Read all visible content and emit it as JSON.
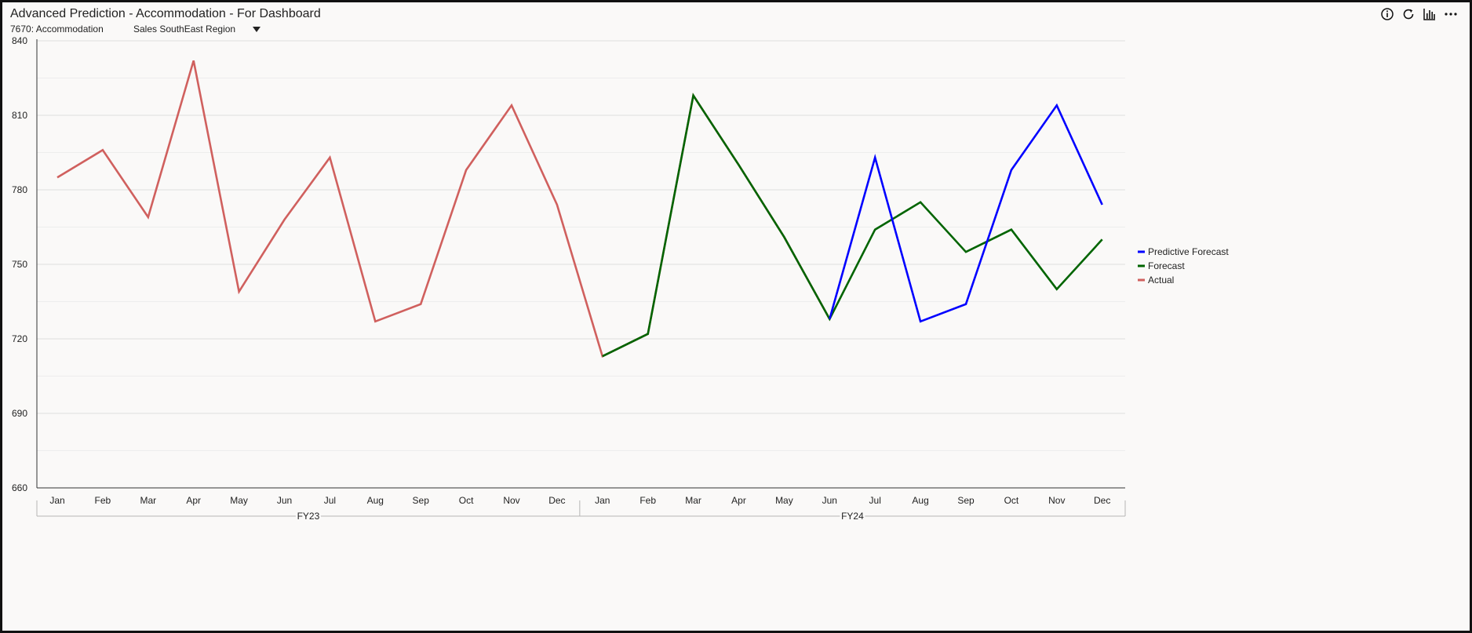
{
  "header": {
    "title": "Advanced Prediction - Accommodation - For Dashboard",
    "subtitle": "7670: Accommodation",
    "region_select": "Sales SouthEast Region"
  },
  "toolbar": {
    "icons": [
      "info-icon",
      "refresh-icon",
      "bar-chart-icon",
      "more-options-icon"
    ]
  },
  "chart_data": {
    "type": "line",
    "title": "",
    "xlabel": "",
    "ylabel": "",
    "ylim": [
      660,
      840
    ],
    "yticks": [
      660,
      690,
      720,
      750,
      780,
      810,
      840
    ],
    "grid": true,
    "legend_position": "right",
    "categories": [
      "Jan",
      "Feb",
      "Mar",
      "Apr",
      "May",
      "Jun",
      "Jul",
      "Aug",
      "Sep",
      "Oct",
      "Nov",
      "Dec",
      "Jan",
      "Feb",
      "Mar",
      "Apr",
      "May",
      "Jun",
      "Jul",
      "Aug",
      "Sep",
      "Oct",
      "Nov",
      "Dec"
    ],
    "groups": [
      {
        "label": "FY23",
        "count": 12
      },
      {
        "label": "FY24",
        "count": 12
      }
    ],
    "series": [
      {
        "name": "Predictive Forecast",
        "color": "#0000ff",
        "values": [
          null,
          null,
          null,
          null,
          null,
          null,
          null,
          null,
          null,
          null,
          null,
          null,
          null,
          null,
          null,
          null,
          null,
          728,
          793,
          727,
          734,
          788,
          814,
          774
        ]
      },
      {
        "name": "Forecast",
        "color": "#006400",
        "values": [
          null,
          null,
          null,
          null,
          null,
          null,
          null,
          null,
          null,
          null,
          null,
          null,
          713,
          722,
          818,
          790,
          761,
          728,
          764,
          775,
          755,
          764,
          740,
          760
        ]
      },
      {
        "name": "Actual",
        "color": "#d0605e",
        "values": [
          785,
          796,
          769,
          832,
          739,
          768,
          793,
          727,
          734,
          788,
          814,
          774,
          713,
          722,
          818,
          790,
          761,
          728,
          null,
          null,
          null,
          null,
          null,
          null
        ]
      }
    ]
  }
}
